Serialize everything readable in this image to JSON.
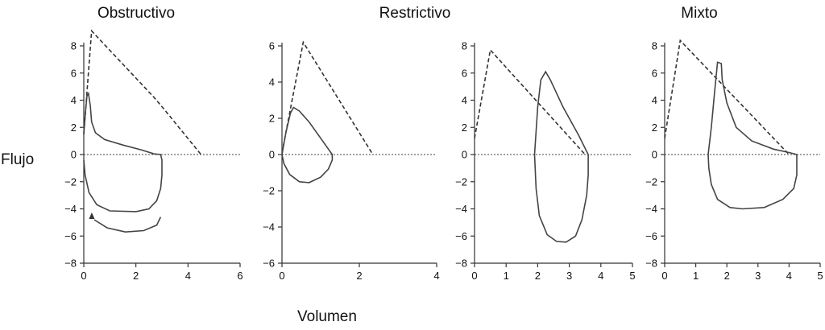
{
  "figure": {
    "ylabel": "Flujo",
    "xlabel": "Volumen"
  },
  "colors": {
    "line": "#444444",
    "axis": "#333333",
    "background": "#ffffff"
  },
  "chart_data": [
    {
      "type": "line",
      "title": "Obstructivo",
      "xlim": [
        0,
        6
      ],
      "ylim": [
        -8,
        8
      ],
      "xticks": [
        0,
        2,
        4,
        6
      ],
      "yticks": [
        -8,
        -6,
        -4,
        -2,
        0,
        2,
        4,
        6,
        8
      ],
      "grid": false,
      "series": [
        {
          "style": "dashed",
          "points": [
            [
              0,
              1.5
            ],
            [
              0.3,
              9.1
            ],
            [
              2.7,
              4.2
            ],
            [
              3.1,
              3.3
            ],
            [
              4.5,
              0
            ]
          ]
        },
        {
          "style": "solid",
          "points": [
            [
              0,
              1.5
            ],
            [
              0.05,
              2.8
            ],
            [
              0.12,
              4.3
            ],
            [
              0.18,
              4.5
            ],
            [
              0.25,
              3.6
            ],
            [
              0.3,
              2.4
            ],
            [
              0.45,
              1.6
            ],
            [
              0.8,
              1.1
            ],
            [
              1.5,
              0.7
            ],
            [
              2.2,
              0.35
            ],
            [
              2.7,
              0.05
            ],
            [
              2.95,
              0
            ],
            [
              3.0,
              -0.4
            ],
            [
              3.0,
              -1.5
            ],
            [
              2.95,
              -2.5
            ],
            [
              2.8,
              -3.4
            ],
            [
              2.5,
              -4.0
            ],
            [
              2.0,
              -4.2
            ],
            [
              1.0,
              -4.15
            ],
            [
              0.5,
              -3.7
            ],
            [
              0.2,
              -2.8
            ],
            [
              0.05,
              -1.5
            ],
            [
              0,
              -0.4
            ]
          ]
        },
        {
          "style": "solid",
          "points": [
            [
              0.4,
              -4.8
            ],
            [
              0.9,
              -5.4
            ],
            [
              1.6,
              -5.7
            ],
            [
              2.3,
              -5.6
            ],
            [
              2.8,
              -5.2
            ],
            [
              2.95,
              -4.6
            ]
          ]
        }
      ]
    },
    {
      "type": "line",
      "title": "Restrictivo",
      "xlim": [
        0,
        4
      ],
      "ylim": [
        -6,
        6
      ],
      "xticks": [
        0,
        2,
        4
      ],
      "yticks": [
        -6,
        -4,
        -2,
        0,
        2,
        4,
        6
      ],
      "grid": false,
      "series": [
        {
          "style": "dashed",
          "points": [
            [
              0,
              0.1
            ],
            [
              0.55,
              6.2
            ],
            [
              2.35,
              0
            ]
          ]
        },
        {
          "style": "solid",
          "points": [
            [
              0,
              0
            ],
            [
              0.1,
              1.2
            ],
            [
              0.22,
              2.3
            ],
            [
              0.3,
              2.6
            ],
            [
              0.45,
              2.4
            ],
            [
              0.7,
              1.8
            ],
            [
              1.0,
              0.9
            ],
            [
              1.3,
              0
            ],
            [
              1.3,
              -0.3
            ],
            [
              1.2,
              -0.8
            ],
            [
              1.0,
              -1.25
            ],
            [
              0.7,
              -1.55
            ],
            [
              0.45,
              -1.5
            ],
            [
              0.2,
              -1.1
            ],
            [
              0.05,
              -0.5
            ],
            [
              0,
              0
            ]
          ]
        }
      ]
    },
    {
      "type": "line",
      "title": "",
      "xlim": [
        0,
        5
      ],
      "ylim": [
        -8,
        8
      ],
      "xticks": [
        0,
        1,
        2,
        3,
        4,
        5
      ],
      "yticks": [
        -8,
        -6,
        -4,
        -2,
        0,
        2,
        4,
        6,
        8
      ],
      "grid": false,
      "series": [
        {
          "style": "dashed",
          "points": [
            [
              0,
              1.2
            ],
            [
              0.5,
              7.7
            ],
            [
              3.5,
              0
            ]
          ]
        },
        {
          "style": "solid",
          "points": [
            [
              1.9,
              0
            ],
            [
              2.0,
              3.5
            ],
            [
              2.1,
              5.5
            ],
            [
              2.25,
              6.1
            ],
            [
              2.4,
              5.5
            ],
            [
              2.8,
              3.5
            ],
            [
              3.3,
              1.4
            ],
            [
              3.6,
              0
            ],
            [
              3.6,
              -1.5
            ],
            [
              3.55,
              -3.0
            ],
            [
              3.4,
              -4.8
            ],
            [
              3.2,
              -6.0
            ],
            [
              2.9,
              -6.45
            ],
            [
              2.6,
              -6.4
            ],
            [
              2.3,
              -5.9
            ],
            [
              2.05,
              -4.5
            ],
            [
              1.95,
              -2.5
            ],
            [
              1.9,
              0
            ]
          ]
        }
      ]
    },
    {
      "type": "line",
      "title": "Mixto",
      "xlim": [
        0,
        5
      ],
      "ylim": [
        -8,
        8
      ],
      "xticks": [
        0,
        1,
        2,
        3,
        4,
        5
      ],
      "yticks": [
        -8,
        -6,
        -4,
        -2,
        0,
        2,
        4,
        6,
        8
      ],
      "grid": false,
      "series": [
        {
          "style": "dashed",
          "points": [
            [
              0,
              1.2
            ],
            [
              0.5,
              8.4
            ],
            [
              4.0,
              0
            ]
          ]
        },
        {
          "style": "solid",
          "points": [
            [
              1.4,
              0
            ],
            [
              1.5,
              2.0
            ],
            [
              1.6,
              4.5
            ],
            [
              1.7,
              6.8
            ],
            [
              1.82,
              6.7
            ],
            [
              1.85,
              5.5
            ],
            [
              2.0,
              3.8
            ],
            [
              2.3,
              2.0
            ],
            [
              2.8,
              1.0
            ],
            [
              3.5,
              0.4
            ],
            [
              4.0,
              0.15
            ],
            [
              4.25,
              0
            ],
            [
              4.25,
              -1.5
            ],
            [
              4.15,
              -2.5
            ],
            [
              3.8,
              -3.3
            ],
            [
              3.2,
              -3.9
            ],
            [
              2.5,
              -4.0
            ],
            [
              2.1,
              -3.9
            ],
            [
              1.7,
              -3.3
            ],
            [
              1.5,
              -2.2
            ],
            [
              1.42,
              -1.0
            ],
            [
              1.4,
              0
            ]
          ]
        }
      ]
    }
  ]
}
